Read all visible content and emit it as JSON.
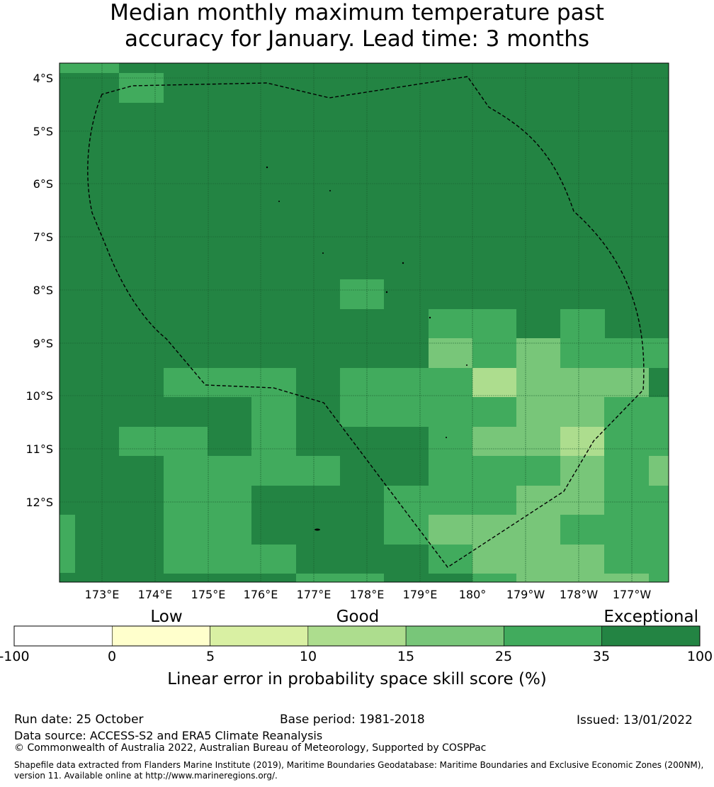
{
  "title": {
    "line1": "Median monthly maximum temperature past",
    "line2": "accuracy for January. Lead time: 3 months"
  },
  "map": {
    "lat_labels": [
      "4°S",
      "5°S",
      "6°S",
      "7°S",
      "8°S",
      "9°S",
      "10°S",
      "11°S",
      "12°S"
    ],
    "lon_labels": [
      "173°E",
      "174°E",
      "175°E",
      "176°E",
      "177°E",
      "178°E",
      "179°E",
      "180°",
      "179°W",
      "178°W",
      "177°W"
    ],
    "colors": {
      "c1": "#ffffcc",
      "c2": "#d9f0a3",
      "c3": "#addd8e",
      "c4": "#78c679",
      "c5": "#41ab5d",
      "c6": "#238443"
    },
    "boundary_style": "dashed-black"
  },
  "colorbar": {
    "categories": [
      "Low",
      "Good",
      "Exceptional"
    ],
    "tick_labels": [
      "-100",
      "0",
      "5",
      "10",
      "15",
      "25",
      "35",
      "100"
    ],
    "segment_colors": [
      "#ffffff",
      "#ffffcc",
      "#d9f0a3",
      "#addd8e",
      "#78c679",
      "#41ab5d",
      "#238443"
    ],
    "label": "Linear error in probability space skill score (%)"
  },
  "footer": {
    "run_date": "Run date: 25 October",
    "base_period": "Base period: 1981-2018",
    "issued": "Issued: 13/01/2022",
    "data_source": "Data source: ACCESS-S2 and ERA5 Climate Reanalysis",
    "copyright": "© Commonwealth of Australia 2022, Australian Bureau of Meteorology, Supported by COSPPac",
    "shapefile": "Shapefile data extracted from Flanders Marine Institute (2019), Maritime Boundaries Geodatabase: Maritime Boundaries and Exclusive Economic Zones (200NM), version 11. Available online at http://www.marineregions.org/."
  }
}
